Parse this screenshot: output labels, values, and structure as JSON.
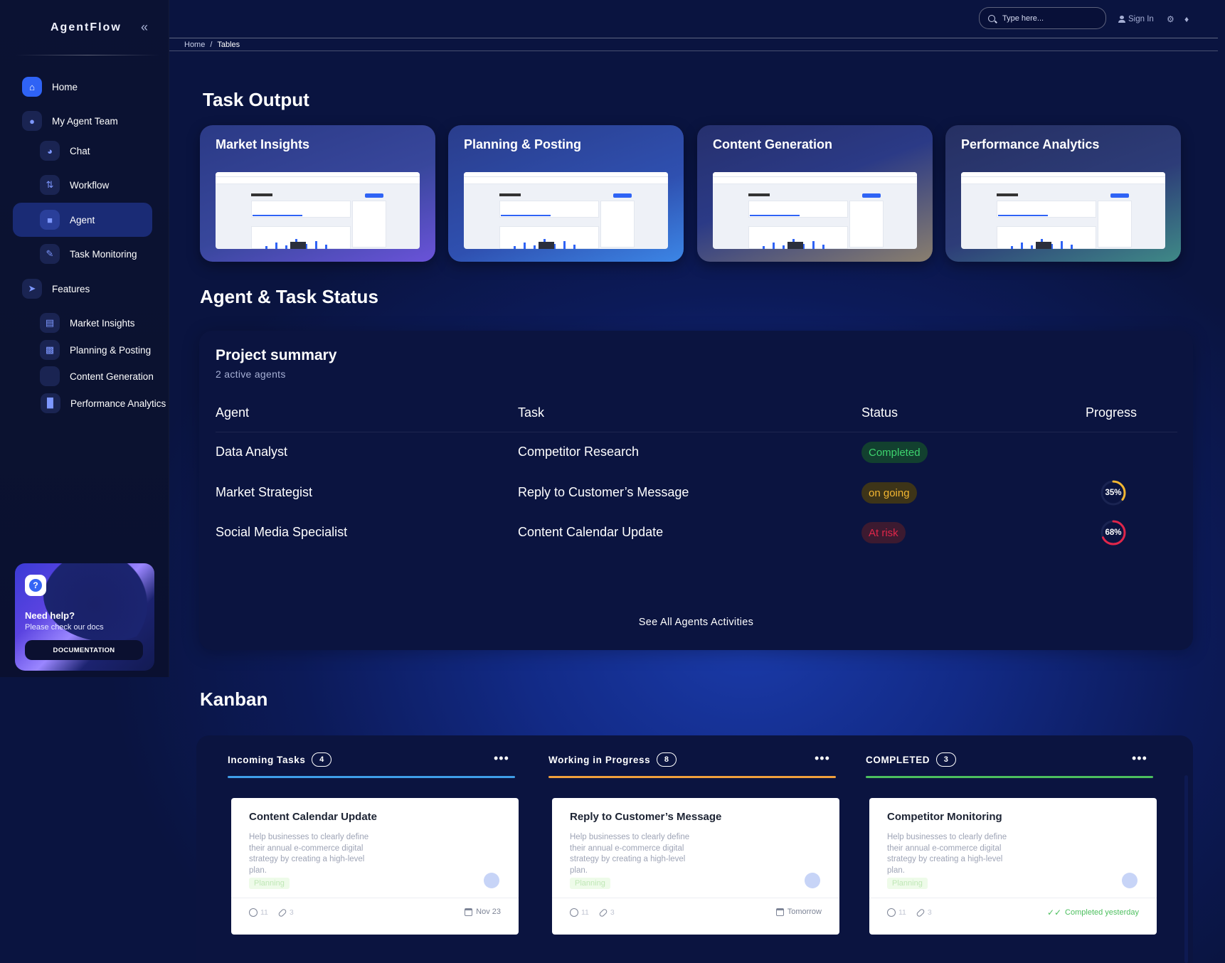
{
  "sidebar": {
    "brand": "AgentFlow",
    "items": [
      {
        "label": "Home",
        "icon": "home-icon"
      },
      {
        "label": "My Agent Team",
        "icon": "team-icon"
      },
      {
        "label": "Chat",
        "icon": "chat-icon"
      },
      {
        "label": "Workflow",
        "icon": "workflow-icon"
      },
      {
        "label": "Agent",
        "icon": "agent-icon"
      },
      {
        "label": "Task Monitoring",
        "icon": "monitoring-icon"
      },
      {
        "label": "Features",
        "icon": "rocket-icon"
      },
      {
        "label": "Market Insights",
        "icon": "insights-icon"
      },
      {
        "label": "Planning & Posting",
        "icon": "document-icon"
      },
      {
        "label": "Content Generation",
        "icon": "content-icon"
      },
      {
        "label": "Performance Analytics",
        "icon": "analytics-icon"
      }
    ],
    "help": {
      "title": "Need help?",
      "subtitle": "Please check our docs",
      "button": "DOCUMENTATION"
    }
  },
  "topbar": {
    "search_placeholder": "Type here...",
    "sign_in": "Sign In",
    "breadcrumb_home": "Home",
    "breadcrumb_sep": "/",
    "breadcrumb_current": "Tables"
  },
  "task_output": {
    "title": "Task Output",
    "cards": [
      {
        "title": "Market Insights",
        "gradient": "linear-gradient(160deg,#2b3a86 0%,#38479c 55%,#6a53d9 100%)"
      },
      {
        "title": "Planning & Posting",
        "gradient": "linear-gradient(160deg,#2a3d8c 0%,#2f50b0 60%,#3c86e6 100%)"
      },
      {
        "title": "Content Generation",
        "gradient": "linear-gradient(160deg,#26306e 0%,#2b3a86 45%,#8a7f6e 100%)"
      },
      {
        "title": "Performance Analytics",
        "gradient": "linear-gradient(160deg,#263063 0%,#2d3c78 55%,#3f8a87 100%)"
      }
    ]
  },
  "status": {
    "title": "Agent & Task Status",
    "summary_title": "Project summary",
    "summary_sub": "2 active agents",
    "headers": {
      "agent": "Agent",
      "task": "Task",
      "status": "Status",
      "progress": "Progress"
    },
    "rows": [
      {
        "agent": "Data Analyst",
        "task": "Competitor Research",
        "status": "Completed",
        "progress": null,
        "progress_label": "",
        "color": "#3dd36e"
      },
      {
        "agent": "Market Strategist",
        "task": "Reply to Customer’s Message",
        "status": "on going",
        "progress": 35,
        "progress_label": "35%",
        "color": "#f3b631"
      },
      {
        "agent": "Social Media Specialist",
        "task": "Content Calendar Update",
        "status": "At risk",
        "progress": 68,
        "progress_label": "68%",
        "color": "#e0264a"
      }
    ],
    "see_all": "See All Agents Activities"
  },
  "kanban": {
    "title": "Kanban",
    "columns": [
      {
        "name": "Incoming Tasks",
        "count": "4",
        "color": "#3f9ee8",
        "card": {
          "title": "Content Calendar Update",
          "desc": "Help businesses to clearly define their annual e-commerce digital strategy by creating a high-level plan.",
          "tag": "Planning",
          "comments": "11",
          "links": "3",
          "date": "Nov 23"
        }
      },
      {
        "name": "Working in Progress",
        "count": "8",
        "color": "#f0a03c",
        "card": {
          "title": "Reply to Customer’s Message",
          "desc": "Help businesses to clearly define their annual e-commerce digital strategy by creating a high-level plan.",
          "tag": "Planning",
          "comments": "11",
          "links": "3",
          "date": "Tomorrow"
        }
      },
      {
        "name": "COMPLETED",
        "count": "3",
        "color": "#4cbf5e",
        "card": {
          "title": "Competitor Monitoring",
          "desc": "Help businesses to clearly define their annual e-commerce digital strategy by creating a high-level plan.",
          "tag": "Planning",
          "comments": "11",
          "links": "3",
          "date": "Completed yesterday"
        }
      }
    ]
  }
}
